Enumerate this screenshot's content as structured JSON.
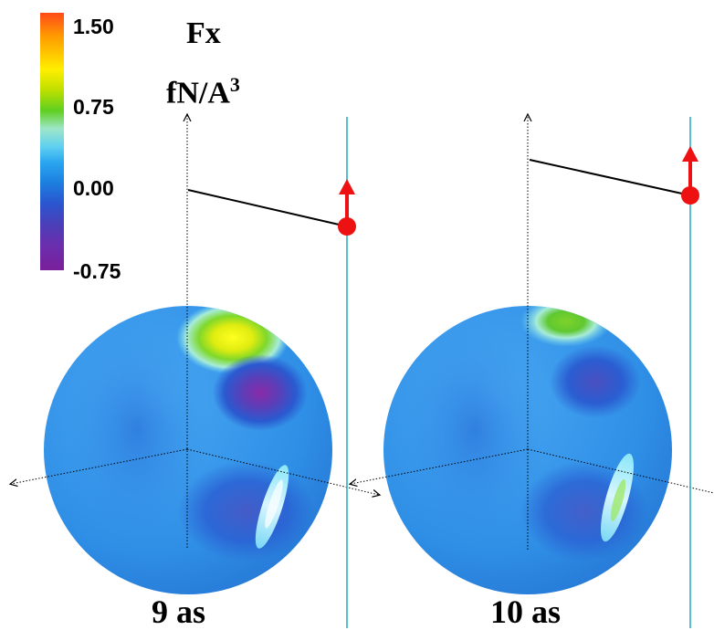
{
  "colorbar": {
    "ticks": [
      "1.50",
      "0.75",
      "0.00",
      "-0.75"
    ],
    "values": [
      1.5,
      0.75,
      0.0,
      -0.75
    ],
    "colors": [
      "#ff4a1a",
      "#ffee00",
      "#5fcf1f",
      "#5fd0f0",
      "#1d7fe0",
      "#7a1f9a"
    ]
  },
  "quantity": {
    "name": "Fx",
    "unit_base": "fN/A",
    "unit_exp": "3"
  },
  "panels": [
    {
      "time_label": "9 as"
    },
    {
      "time_label": "10 as"
    }
  ],
  "colors": {
    "sphere_base": "#2f8fe6",
    "guide_line": "#2ab0c0",
    "arrow": "#ee1111",
    "probe_line": "#000000"
  }
}
